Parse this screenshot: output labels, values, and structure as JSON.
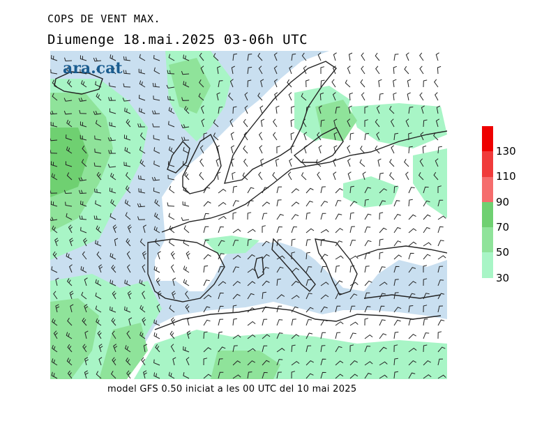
{
  "header": {
    "title": "COPS DE VENT MAX.",
    "subtitle": "Diumenge  18.mai.2025 03-06h UTC"
  },
  "map": {
    "logo_text": "ara.cat"
  },
  "footer": {
    "text": "model GFS 0.50 iniciat a les 00 UTC del 10 mai 2025"
  },
  "legend": {
    "labels": [
      "130",
      "110",
      "90",
      "70",
      "50",
      "30"
    ],
    "colors": {
      "lt30": "#ffffff",
      "c30": "#a8f5c6",
      "c50": "#8fe39a",
      "c70": "#6fd071",
      "c90": "#f56d6d",
      "c110": "#f03b3b",
      "c130": "#ee0000",
      "sea": "#c9dff0"
    }
  }
}
